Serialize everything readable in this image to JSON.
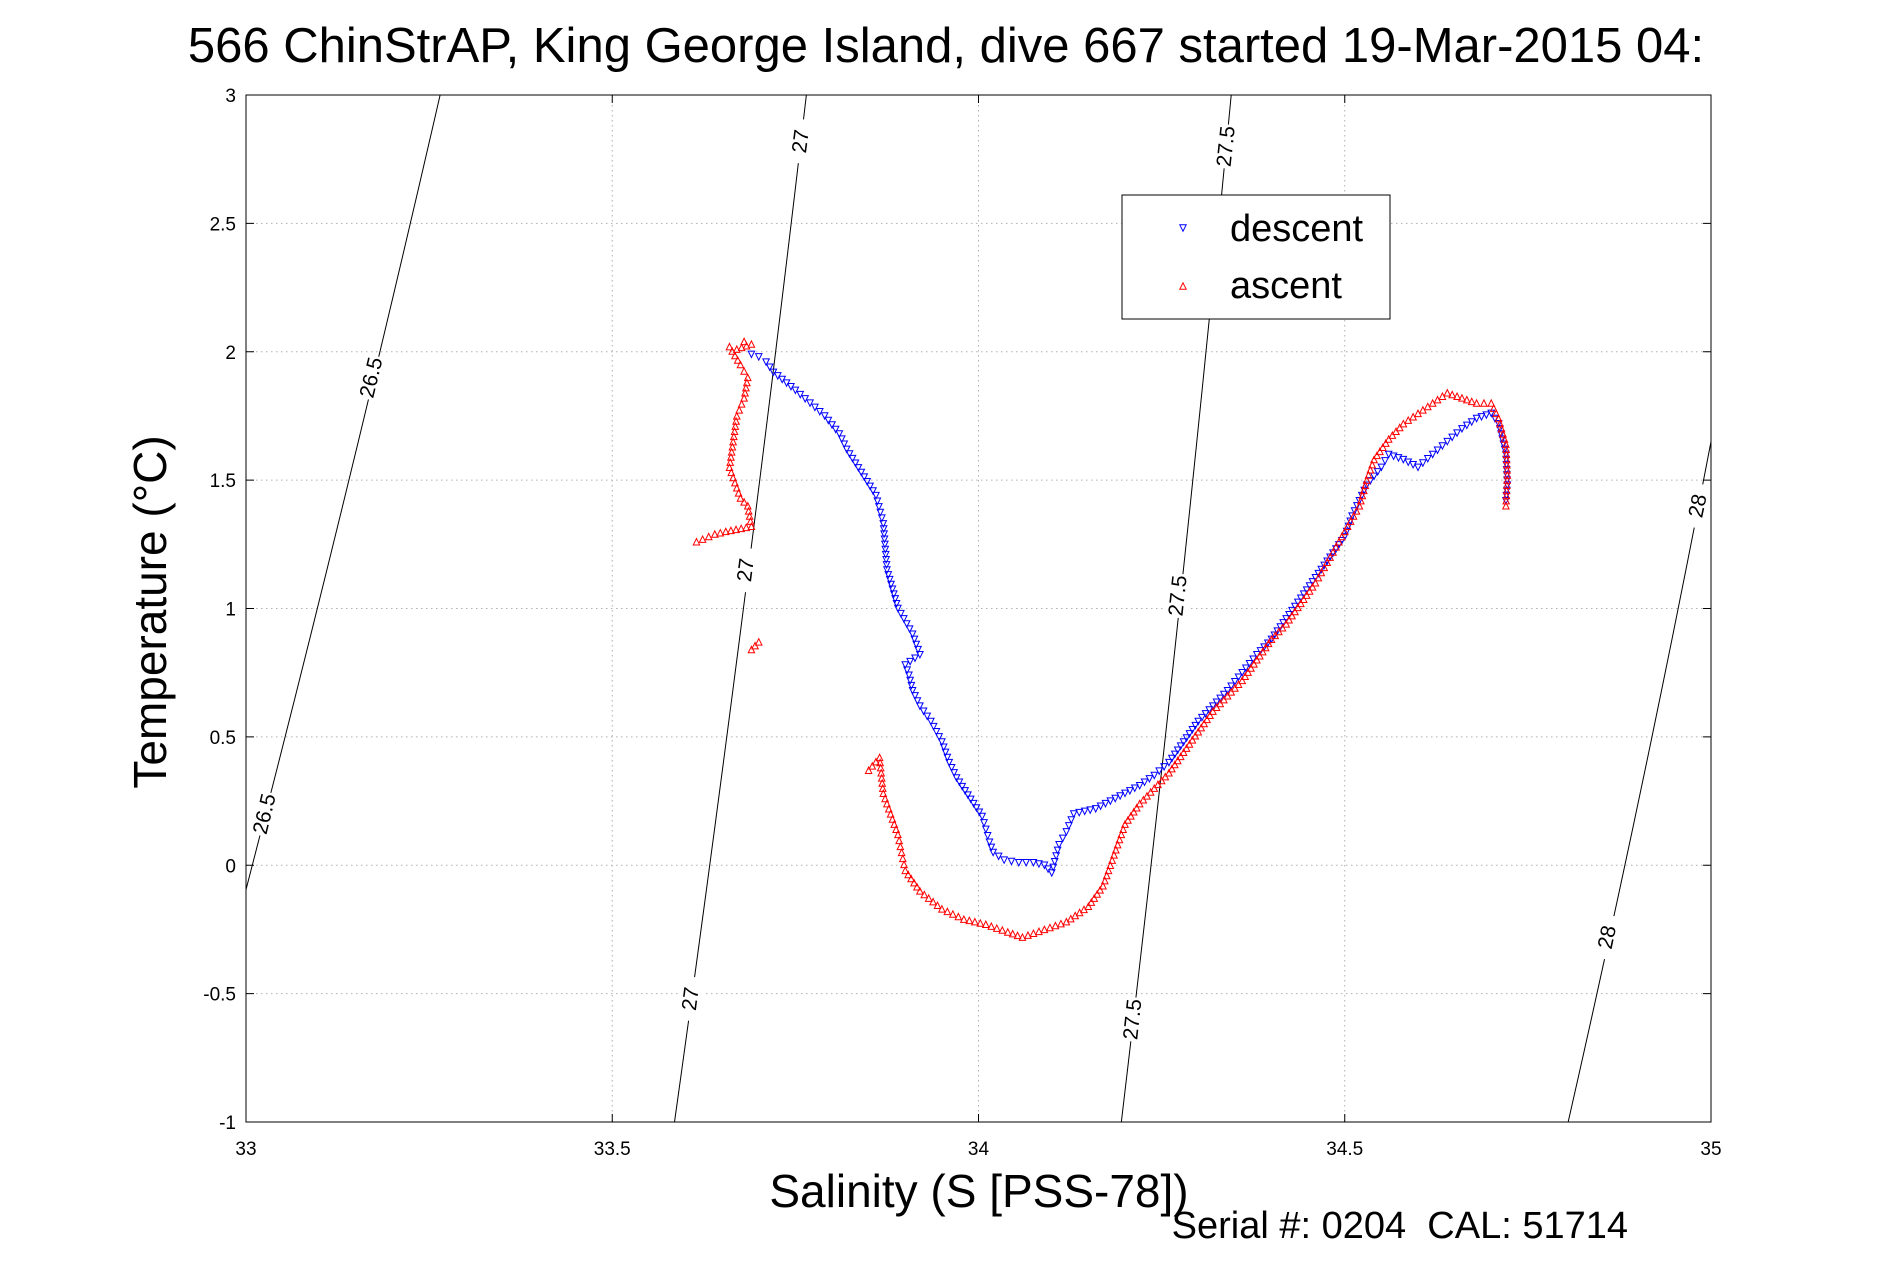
{
  "chart_data": {
    "type": "scatter",
    "title": "566 ChinStrAP, King George Island, dive 667 started 19-Mar-2015 04:",
    "xlabel": "Salinity (S [PSS-78])",
    "ylabel": "Temperature (°C)",
    "xlim": [
      33,
      35
    ],
    "ylim": [
      -1,
      3
    ],
    "x_ticks": [
      "33",
      "33.5",
      "34",
      "34.5",
      "35"
    ],
    "y_ticks": [
      "-1",
      "-0.5",
      "0",
      "0.5",
      "1",
      "1.5",
      "2",
      "2.5",
      "3"
    ],
    "grid": true,
    "legend_position": "top-right",
    "footer": "Serial #: 0204  CAL: 51714",
    "series": [
      {
        "name": "descent",
        "color": "#0000ff",
        "marker": "triangle-down",
        "points": [
          [
            33.69,
            1.99
          ],
          [
            33.7,
            1.98
          ],
          [
            33.71,
            1.96
          ],
          [
            33.72,
            1.92
          ],
          [
            33.75,
            1.85
          ],
          [
            33.77,
            1.8
          ],
          [
            33.79,
            1.75
          ],
          [
            33.81,
            1.68
          ],
          [
            33.82,
            1.62
          ],
          [
            33.86,
            1.44
          ],
          [
            33.87,
            1.33
          ],
          [
            33.875,
            1.15
          ],
          [
            33.89,
            1.0
          ],
          [
            33.91,
            0.9
          ],
          [
            33.92,
            0.82
          ],
          [
            33.9,
            0.78
          ],
          [
            33.905,
            0.74
          ],
          [
            33.91,
            0.68
          ],
          [
            33.92,
            0.62
          ],
          [
            33.935,
            0.56
          ],
          [
            33.95,
            0.48
          ],
          [
            33.96,
            0.4
          ],
          [
            33.97,
            0.34
          ],
          [
            34.005,
            0.19
          ],
          [
            34.01,
            0.14
          ],
          [
            34.015,
            0.09
          ],
          [
            34.02,
            0.05
          ],
          [
            34.035,
            0.02
          ],
          [
            34.055,
            0.01
          ],
          [
            34.075,
            0.01
          ],
          [
            34.09,
            0.0
          ],
          [
            34.1,
            -0.03
          ],
          [
            34.11,
            0.08
          ],
          [
            34.12,
            0.13
          ],
          [
            34.13,
            0.2
          ],
          [
            34.16,
            0.22
          ],
          [
            34.18,
            0.25
          ],
          [
            34.2,
            0.28
          ],
          [
            34.22,
            0.31
          ],
          [
            34.24,
            0.35
          ],
          [
            34.26,
            0.4
          ],
          [
            34.28,
            0.48
          ],
          [
            34.3,
            0.56
          ],
          [
            34.32,
            0.62
          ],
          [
            34.34,
            0.68
          ],
          [
            34.36,
            0.75
          ],
          [
            34.38,
            0.82
          ],
          [
            34.4,
            0.88
          ],
          [
            34.42,
            0.96
          ],
          [
            34.44,
            1.04
          ],
          [
            34.46,
            1.12
          ],
          [
            34.48,
            1.2
          ],
          [
            34.5,
            1.28
          ],
          [
            34.51,
            1.36
          ],
          [
            34.52,
            1.42
          ],
          [
            34.53,
            1.48
          ],
          [
            34.55,
            1.55
          ],
          [
            34.56,
            1.6
          ],
          [
            34.58,
            1.58
          ],
          [
            34.6,
            1.55
          ],
          [
            34.62,
            1.6
          ],
          [
            34.64,
            1.65
          ],
          [
            34.66,
            1.7
          ],
          [
            34.68,
            1.74
          ],
          [
            34.7,
            1.76
          ],
          [
            34.71,
            1.72
          ],
          [
            34.72,
            1.6
          ],
          [
            34.722,
            1.48
          ],
          [
            34.72,
            1.42
          ]
        ]
      },
      {
        "name": "ascent",
        "color": "#ff0000",
        "marker": "triangle-up",
        "points": [
          [
            33.68,
            2.04
          ],
          [
            33.69,
            2.03
          ],
          [
            33.67,
            2.01
          ],
          [
            33.66,
            2.02
          ],
          [
            33.675,
            1.95
          ],
          [
            33.685,
            1.9
          ],
          [
            33.68,
            1.82
          ],
          [
            33.67,
            1.75
          ],
          [
            33.665,
            1.65
          ],
          [
            33.66,
            1.55
          ],
          [
            33.675,
            1.43
          ],
          [
            33.685,
            1.4
          ],
          [
            33.69,
            1.32
          ],
          [
            33.655,
            1.3
          ],
          [
            33.64,
            1.29
          ],
          [
            33.615,
            1.26
          ],
          [
            33.7,
            0.87
          ],
          [
            33.69,
            0.84
          ],
          [
            33.85,
            0.37
          ],
          [
            33.865,
            0.42
          ],
          [
            33.87,
            0.28
          ],
          [
            33.88,
            0.2
          ],
          [
            33.89,
            0.12
          ],
          [
            33.895,
            0.05
          ],
          [
            33.9,
            -0.02
          ],
          [
            33.92,
            -0.1
          ],
          [
            33.95,
            -0.17
          ],
          [
            33.98,
            -0.21
          ],
          [
            34.01,
            -0.23
          ],
          [
            34.04,
            -0.26
          ],
          [
            34.06,
            -0.28
          ],
          [
            34.09,
            -0.25
          ],
          [
            34.12,
            -0.22
          ],
          [
            34.15,
            -0.16
          ],
          [
            34.17,
            -0.08
          ],
          [
            34.18,
            0.0
          ],
          [
            34.19,
            0.08
          ],
          [
            34.2,
            0.16
          ],
          [
            34.22,
            0.24
          ],
          [
            34.24,
            0.3
          ],
          [
            34.26,
            0.36
          ],
          [
            34.28,
            0.44
          ],
          [
            34.3,
            0.52
          ],
          [
            34.32,
            0.6
          ],
          [
            34.34,
            0.66
          ],
          [
            34.36,
            0.72
          ],
          [
            34.38,
            0.8
          ],
          [
            34.4,
            0.88
          ],
          [
            34.42,
            0.94
          ],
          [
            34.44,
            1.02
          ],
          [
            34.46,
            1.1
          ],
          [
            34.48,
            1.2
          ],
          [
            34.5,
            1.3
          ],
          [
            34.52,
            1.4
          ],
          [
            34.53,
            1.5
          ],
          [
            34.54,
            1.58
          ],
          [
            34.56,
            1.66
          ],
          [
            34.58,
            1.72
          ],
          [
            34.6,
            1.76
          ],
          [
            34.62,
            1.8
          ],
          [
            34.64,
            1.84
          ],
          [
            34.66,
            1.82
          ],
          [
            34.68,
            1.8
          ],
          [
            34.7,
            1.8
          ],
          [
            34.71,
            1.74
          ],
          [
            34.72,
            1.64
          ],
          [
            34.722,
            1.52
          ],
          [
            34.72,
            1.4
          ]
        ]
      }
    ],
    "contours": [
      {
        "sigma_label": "26.5",
        "labels": 2
      },
      {
        "sigma_label": "27",
        "labels": 3
      },
      {
        "sigma_label": "27.5",
        "labels": 3
      },
      {
        "sigma_label": "28",
        "labels": 2
      }
    ]
  }
}
